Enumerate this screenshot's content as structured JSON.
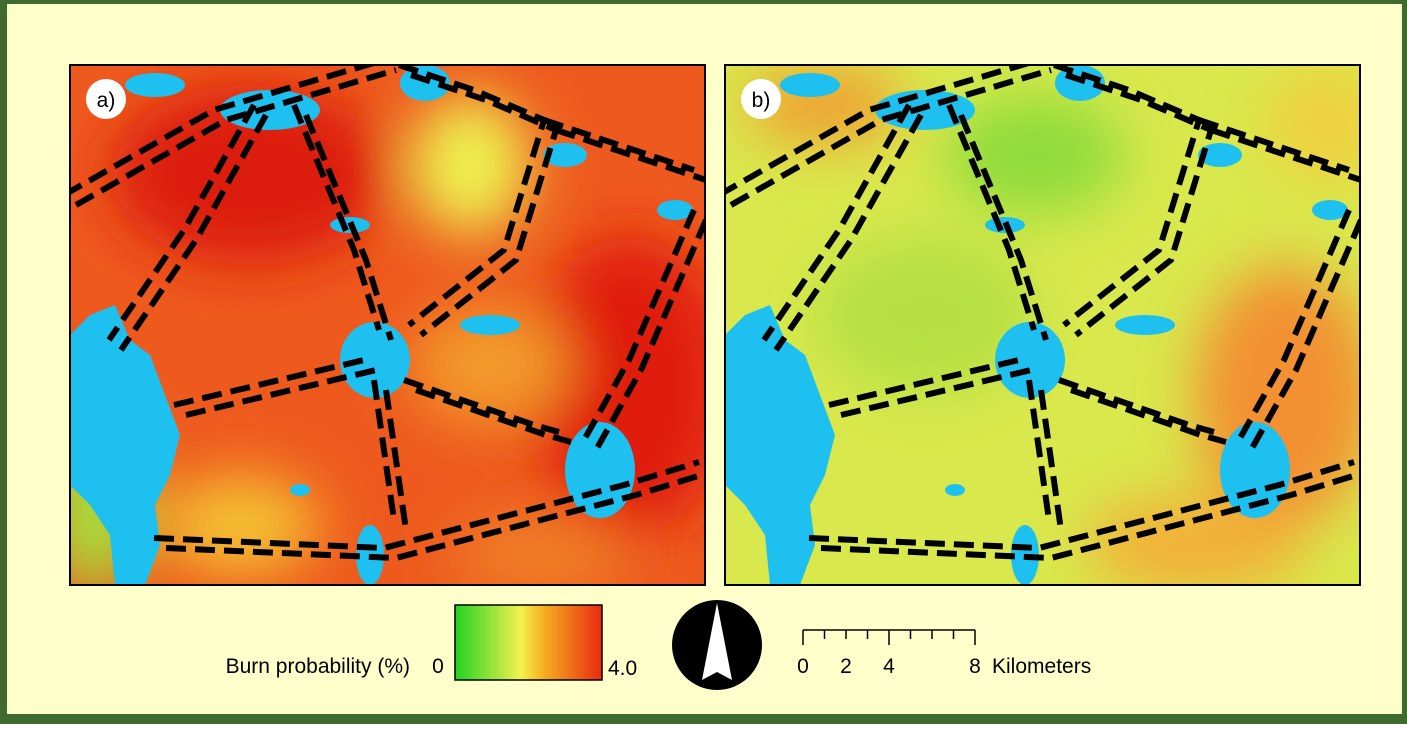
{
  "panels": [
    {
      "label": "a)"
    },
    {
      "label": "b)"
    }
  ],
  "legend": {
    "title": "Burn probability (%)",
    "min_label": "0",
    "max_label": "4.0"
  },
  "scale_bar": {
    "labels": [
      "0",
      "2",
      "4",
      "8"
    ],
    "unit": "Kilometers"
  }
}
